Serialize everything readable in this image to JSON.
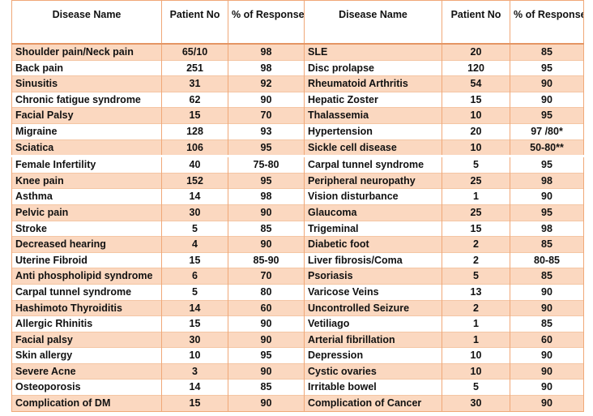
{
  "headers": {
    "left_name": "Disease Name",
    "left_patients": "Patient No",
    "left_response": "% of Response",
    "right_name": "Disease Name",
    "right_patients": "Patient No",
    "right_response": "% of Response"
  },
  "rows": [
    {
      "l_name": "Shoulder pain/Neck pain",
      "l_pat": "65/10",
      "l_resp": "98",
      "r_name": "SLE",
      "r_pat": "20",
      "r_resp": "85"
    },
    {
      "l_name": "Back pain",
      "l_pat": "251",
      "l_resp": "98",
      "r_name": "Disc prolapse",
      "r_pat": "120",
      "r_resp": "95"
    },
    {
      "l_name": "Sinusitis",
      "l_pat": "31",
      "l_resp": "92",
      "r_name": "Rheumatoid Arthritis",
      "r_pat": "54",
      "r_resp": "90"
    },
    {
      "l_name": "Chronic fatigue syndrome",
      "l_pat": "62",
      "l_resp": "90",
      "r_name": "Hepatic Zoster",
      "r_pat": "15",
      "r_resp": "90"
    },
    {
      "l_name": "Facial Palsy",
      "l_pat": "15",
      "l_resp": "70",
      "r_name": "Thalassemia",
      "r_pat": "10",
      "r_resp": "95"
    },
    {
      "l_name": "Migraine",
      "l_pat": "128",
      "l_resp": "93",
      "r_name": "Hypertension",
      "r_pat": "20",
      "r_resp": "97 /80*"
    },
    {
      "l_name": "Sciatica",
      "l_pat": "106",
      "l_resp": "95",
      "r_name": "Sickle cell disease",
      "r_pat": "10",
      "r_resp": "50-80**"
    },
    {
      "l_name": "Female  Infertility",
      "l_pat": "40",
      "l_resp": "75-80",
      "r_name": "Carpal tunnel syndrome",
      "r_pat": "5",
      "r_resp": "95"
    },
    {
      "l_name": "Knee pain",
      "l_pat": "152",
      "l_resp": "95",
      "r_name": "Peripheral neuropathy",
      "r_pat": "25",
      "r_resp": "98"
    },
    {
      "l_name": "Asthma",
      "l_pat": "14",
      "l_resp": "98",
      "r_name": "Vision disturbance",
      "r_pat": "1",
      "r_resp": "90"
    },
    {
      "l_name": "Pelvic pain",
      "l_pat": "30",
      "l_resp": "90",
      "r_name": "Glaucoma",
      "r_pat": "25",
      "r_resp": "95"
    },
    {
      "l_name": "Stroke",
      "l_pat": "5",
      "l_resp": "85",
      "r_name": "Trigeminal",
      "r_pat": "15",
      "r_resp": "98"
    },
    {
      "l_name": "Decreased hearing",
      "l_pat": "4",
      "l_resp": "90",
      "r_name": "Diabetic foot",
      "r_pat": "2",
      "r_resp": "85"
    },
    {
      "l_name": "Uterine Fibroid",
      "l_pat": "15",
      "l_resp": "85-90",
      "r_name": "Liver fibrosis/Coma",
      "r_pat": "2",
      "r_resp": "80-85"
    },
    {
      "l_name": "Anti phospholipid syndrome",
      "l_pat": "6",
      "l_resp": "70",
      "r_name": "Psoriasis",
      "r_pat": "5",
      "r_resp": "85"
    },
    {
      "l_name": "Carpal tunnel syndrome",
      "l_pat": "5",
      "l_resp": "80",
      "r_name": "Varicose Veins",
      "r_pat": "13",
      "r_resp": "90"
    },
    {
      "l_name": "Hashimoto Thyroiditis",
      "l_pat": "14",
      "l_resp": "60",
      "r_name": "Uncontrolled Seizure",
      "r_pat": "2",
      "r_resp": "90"
    },
    {
      "l_name": "Allergic  Rhinitis",
      "l_pat": "15",
      "l_resp": "90",
      "r_name": "Vetiliago",
      "r_pat": "1",
      "r_resp": "85"
    },
    {
      "l_name": "Facial palsy",
      "l_pat": "30",
      "l_resp": "90",
      "r_name": "Arterial fibrillation",
      "r_pat": "1",
      "r_resp": "60"
    },
    {
      "l_name": "Skin allergy",
      "l_pat": "10",
      "l_resp": "95",
      "r_name": "Depression",
      "r_pat": "10",
      "r_resp": "90"
    },
    {
      "l_name": "Severe Acne",
      "l_pat": "3",
      "l_resp": "90",
      "r_name": "Cystic ovaries",
      "r_pat": "10",
      "r_resp": "90"
    },
    {
      "l_name": "Osteoporosis",
      "l_pat": "14",
      "l_resp": "85",
      "r_name": "Irritable bowel",
      "r_pat": "5",
      "r_resp": "90"
    },
    {
      "l_name": "Complication of DM",
      "l_pat": "15",
      "l_resp": "90",
      "r_name": "Complication of Cancer",
      "r_pat": "30",
      "r_resp": "90"
    }
  ],
  "colors": {
    "band": "#fbd8c0",
    "border": "#f0a878"
  }
}
